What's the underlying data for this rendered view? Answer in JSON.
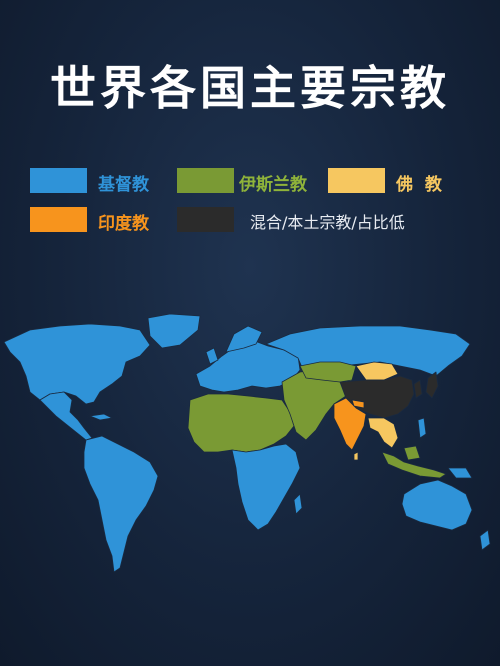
{
  "title": "世界各国主要宗教",
  "legend": [
    {
      "id": "christianity",
      "label": "基督教",
      "color": "#2f93d8",
      "label_color": "#2f93d8"
    },
    {
      "id": "islam",
      "label": "伊斯兰教",
      "color": "#7a9a34",
      "label_color": "#8fb33a"
    },
    {
      "id": "buddhism",
      "label": "佛  教",
      "color": "#f6c760",
      "label_color": "#f6c760"
    },
    {
      "id": "hinduism",
      "label": "印度教",
      "color": "#f7941d",
      "label_color": "#f7941d"
    },
    {
      "id": "mixed",
      "label": "混合/本土宗教/占比低",
      "color": "#2b2b2b",
      "label_color": "#e8ecf2"
    }
  ],
  "colors": {
    "background": "#15243b",
    "border": "#1a2a40"
  }
}
